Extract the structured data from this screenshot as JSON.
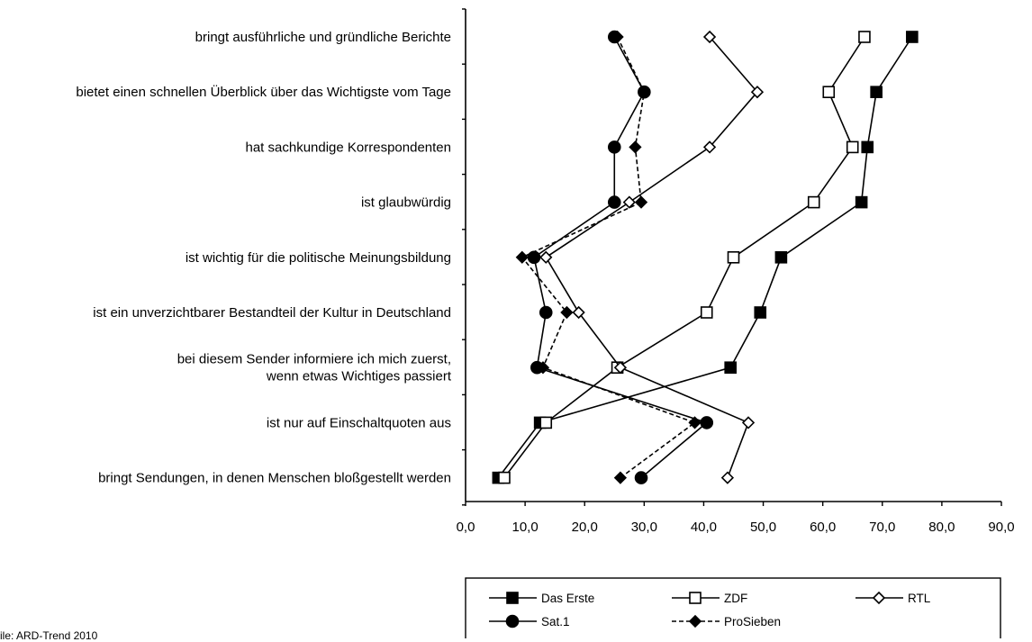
{
  "chart_data": {
    "type": "line",
    "orientation": "horizontal",
    "categories": [
      [
        "bringt ausführliche und gründliche Berichte"
      ],
      [
        "bietet einen schnellen Überblick über das Wichtigste vom Tage"
      ],
      [
        "hat sachkundige Korrespondenten"
      ],
      [
        "ist glaubwürdig"
      ],
      [
        "ist wichtig für die politische Meinungsbildung"
      ],
      [
        "ist ein unverzichtbarer Bestandteil der Kultur in Deutschland"
      ],
      [
        "bei diesem Sender informiere ich mich zuerst,",
        "wenn etwas Wichtiges passiert"
      ],
      [
        "ist nur auf Einschaltquoten aus"
      ],
      [
        "bringt Sendungen, in denen Menschen bloßgestellt werden"
      ]
    ],
    "xlim": [
      0,
      90
    ],
    "x_ticks": [
      "0,0",
      "10,0",
      "20,0",
      "30,0",
      "40,0",
      "50,0",
      "60,0",
      "70,0",
      "80,0",
      "90,0"
    ],
    "xlabel": "",
    "ylabel": "",
    "title": "",
    "grid": false,
    "legend_position": "bottom",
    "series": [
      {
        "name": "Das Erste",
        "marker": "square-filled",
        "line": "solid",
        "values": [
          75,
          69,
          67.5,
          66.5,
          53,
          49.5,
          44.5,
          12.5,
          5.5
        ]
      },
      {
        "name": "ZDF",
        "marker": "square-open",
        "line": "solid",
        "values": [
          67,
          61,
          65,
          58.5,
          45,
          40.5,
          25.5,
          13.5,
          6.5
        ]
      },
      {
        "name": "RTL",
        "marker": "diamond-open",
        "line": "solid",
        "values": [
          41,
          49,
          41,
          27.5,
          13.5,
          19,
          26,
          47.5,
          44
        ]
      },
      {
        "name": "Sat.1",
        "marker": "circle-filled",
        "line": "solid",
        "values": [
          25,
          30,
          25,
          25,
          11.5,
          13.5,
          12,
          40.5,
          29.5
        ]
      },
      {
        "name": "ProSieben",
        "marker": "diamond-filled",
        "line": "dashed",
        "values": [
          25.5,
          30,
          28.5,
          29.5,
          9.5,
          17,
          13,
          38.5,
          26
        ]
      }
    ]
  },
  "source_note": "ile: ARD-Trend 2010"
}
